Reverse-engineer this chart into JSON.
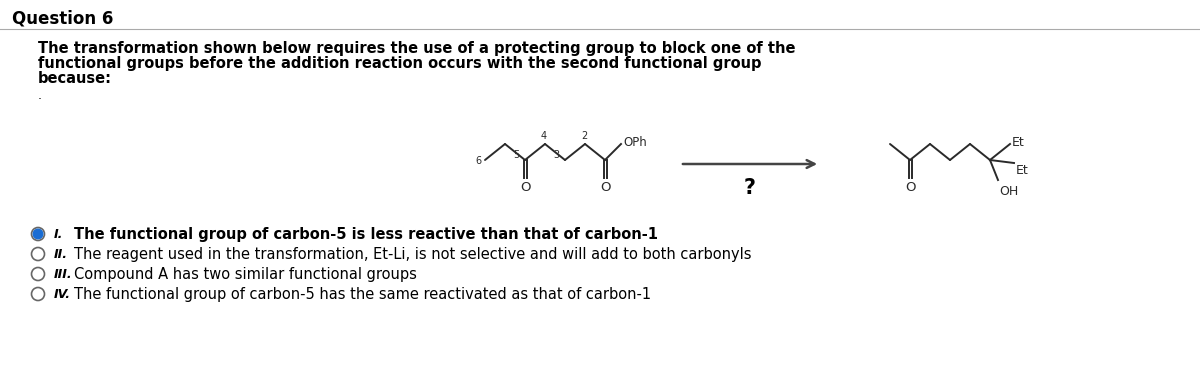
{
  "title": "Question 6",
  "question_text_line1": "The transformation shown below requires the use of a protecting group to block one of the",
  "question_text_line2": "functional groups before the addition reaction occurs with the second functional group",
  "question_text_line3": "because:",
  "options": [
    {
      "roman": "I.",
      "text": "The functional group of carbon-5 is less reactive than that of carbon-1",
      "selected": true
    },
    {
      "roman": "II.",
      "text": "The reagent used in the transformation, Et-Li, is not selective and will add to both carbonyls",
      "selected": false
    },
    {
      "roman": "III.",
      "text": "Compound A has two similar functional groups",
      "selected": false
    },
    {
      "roman": "IV.",
      "text": "The functional group of carbon-5 has the same reactivated as that of carbon-1",
      "selected": false
    }
  ],
  "bg_color": "#ffffff",
  "text_color": "#000000",
  "title_fontsize": 12,
  "body_fontsize": 10.5,
  "option_fontsize": 10.5,
  "mol_color": "#2a2a2a"
}
